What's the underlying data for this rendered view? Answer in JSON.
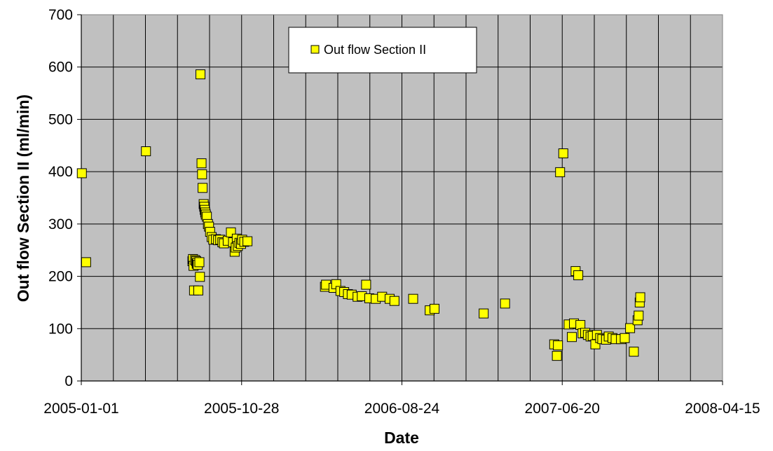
{
  "chart_data": {
    "type": "scatter",
    "title": "",
    "xlabel": "Date",
    "ylabel": "Out flow Section II (ml/min)",
    "x_is_date": true,
    "xlim": [
      "2005-01-01",
      "2008-04-15"
    ],
    "x_ticks": [
      "2005-01-01",
      "2005-10-28",
      "2006-08-24",
      "2007-06-20",
      "2008-04-15"
    ],
    "x_gridline_interval_days": 60,
    "ylim": [
      0,
      700
    ],
    "y_ticks": [
      0,
      100,
      200,
      300,
      400,
      500,
      600,
      700
    ],
    "grid": true,
    "legend": {
      "position": "top-center",
      "entries": [
        "Out flow Section II"
      ]
    },
    "series": [
      {
        "name": "Out flow Section II",
        "marker": "square",
        "color": "#FFFF00",
        "edge_color": "#000000",
        "points": [
          [
            "2005-01-02",
            397
          ],
          [
            "2005-01-10",
            227
          ],
          [
            "2005-05-02",
            439
          ],
          [
            "2005-07-28",
            229
          ],
          [
            "2005-07-29",
            233
          ],
          [
            "2005-07-30",
            220
          ],
          [
            "2005-07-31",
            173
          ],
          [
            "2005-08-02",
            231
          ],
          [
            "2005-08-04",
            229
          ],
          [
            "2005-08-05",
            224
          ],
          [
            "2005-08-06",
            226
          ],
          [
            "2005-08-07",
            222
          ],
          [
            "2005-08-08",
            173
          ],
          [
            "2005-08-10",
            227
          ],
          [
            "2005-08-11",
            199
          ],
          [
            "2005-08-12",
            586
          ],
          [
            "2005-08-14",
            416
          ],
          [
            "2005-08-15",
            395
          ],
          [
            "2005-08-16",
            369
          ],
          [
            "2005-08-18",
            338
          ],
          [
            "2005-08-19",
            333
          ],
          [
            "2005-08-20",
            327
          ],
          [
            "2005-08-21",
            322
          ],
          [
            "2005-08-22",
            318
          ],
          [
            "2005-08-24",
            314
          ],
          [
            "2005-08-26",
            300
          ],
          [
            "2005-08-28",
            295
          ],
          [
            "2005-08-30",
            285
          ],
          [
            "2005-09-02",
            275
          ],
          [
            "2005-09-05",
            270
          ],
          [
            "2005-09-10",
            271
          ],
          [
            "2005-09-14",
            269
          ],
          [
            "2005-09-18",
            270
          ],
          [
            "2005-09-22",
            265
          ],
          [
            "2005-09-25",
            263
          ],
          [
            "2005-10-02",
            268
          ],
          [
            "2005-10-08",
            284
          ],
          [
            "2005-10-12",
            265
          ],
          [
            "2005-10-15",
            247
          ],
          [
            "2005-10-17",
            255
          ],
          [
            "2005-10-19",
            272
          ],
          [
            "2005-10-21",
            258
          ],
          [
            "2005-10-24",
            264
          ],
          [
            "2005-10-27",
            262
          ],
          [
            "2005-10-29",
            270
          ],
          [
            "2005-11-02",
            266
          ],
          [
            "2005-11-08",
            267
          ],
          [
            "2006-04-02",
            180
          ],
          [
            "2006-04-04",
            184
          ],
          [
            "2006-04-18",
            178
          ],
          [
            "2006-04-23",
            185
          ],
          [
            "2006-05-01",
            172
          ],
          [
            "2006-05-08",
            170
          ],
          [
            "2006-05-15",
            166
          ],
          [
            "2006-05-22",
            165
          ],
          [
            "2006-06-02",
            161
          ],
          [
            "2006-06-10",
            162
          ],
          [
            "2006-06-18",
            184
          ],
          [
            "2006-06-24",
            158
          ],
          [
            "2006-07-06",
            157
          ],
          [
            "2006-07-18",
            161
          ],
          [
            "2006-08-01",
            157
          ],
          [
            "2006-08-10",
            153
          ],
          [
            "2006-09-14",
            157
          ],
          [
            "2006-10-15",
            135
          ],
          [
            "2006-10-24",
            138
          ],
          [
            "2007-01-24",
            129
          ],
          [
            "2007-03-05",
            148
          ],
          [
            "2007-06-05",
            70
          ],
          [
            "2007-06-10",
            48
          ],
          [
            "2007-06-12",
            68
          ],
          [
            "2007-06-16",
            399
          ],
          [
            "2007-06-22",
            435
          ],
          [
            "2007-07-02",
            108
          ],
          [
            "2007-07-08",
            84
          ],
          [
            "2007-07-12",
            110
          ],
          [
            "2007-07-15",
            210
          ],
          [
            "2007-07-20",
            202
          ],
          [
            "2007-07-24",
            107
          ],
          [
            "2007-07-28",
            91
          ],
          [
            "2007-08-02",
            92
          ],
          [
            "2007-08-07",
            88
          ],
          [
            "2007-08-12",
            85
          ],
          [
            "2007-08-16",
            86
          ],
          [
            "2007-08-21",
            70
          ],
          [
            "2007-08-24",
            88
          ],
          [
            "2007-08-30",
            82
          ],
          [
            "2007-09-03",
            80
          ],
          [
            "2007-09-10",
            79
          ],
          [
            "2007-09-15",
            85
          ],
          [
            "2007-09-22",
            82
          ],
          [
            "2007-09-28",
            80
          ],
          [
            "2007-10-08",
            80
          ],
          [
            "2007-10-15",
            82
          ],
          [
            "2007-10-25",
            101
          ],
          [
            "2007-11-01",
            56
          ],
          [
            "2007-11-08",
            116
          ],
          [
            "2007-11-10",
            125
          ],
          [
            "2007-11-12",
            150
          ],
          [
            "2007-11-13",
            160
          ]
        ]
      }
    ]
  }
}
